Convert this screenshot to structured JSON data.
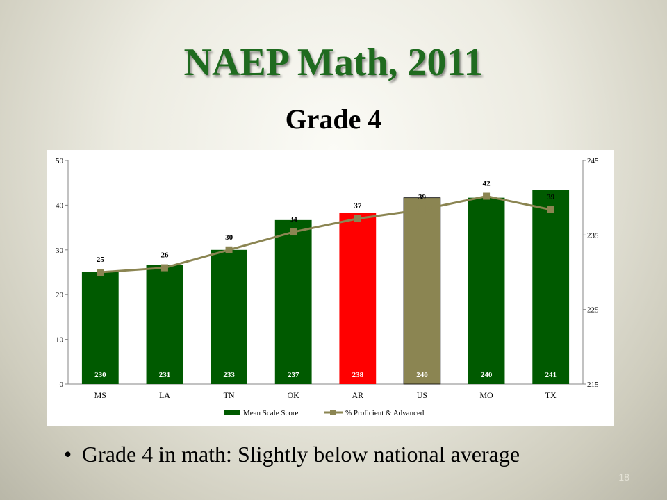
{
  "slide": {
    "title": "NAEP Math, 2011",
    "subtitle": "Grade 4",
    "bullet": "Grade 4 in math: Slightly below national average",
    "page_number": "18"
  },
  "chart_data": {
    "type": "bar",
    "categories": [
      "MS",
      "LA",
      "TN",
      "OK",
      "AR",
      "US",
      "MO",
      "TX"
    ],
    "series": [
      {
        "name": "Mean Scale Score",
        "type": "bar",
        "axis": "right",
        "values": [
          230,
          231,
          233,
          237,
          238,
          240,
          240,
          241
        ],
        "colors": [
          "#005a00",
          "#005a00",
          "#005a00",
          "#005a00",
          "#ff0000",
          "#8b8552",
          "#005a00",
          "#005a00"
        ]
      },
      {
        "name": "% Proficient & Advanced",
        "type": "line",
        "axis": "left",
        "values": [
          25,
          26,
          30,
          34,
          37,
          39,
          42,
          39
        ],
        "color": "#8b8552"
      }
    ],
    "left_axis": {
      "range": [
        0,
        50
      ],
      "ticks": [
        "0",
        "10",
        "20",
        "30",
        "40",
        "50"
      ]
    },
    "right_axis": {
      "range": [
        215,
        245
      ],
      "ticks": [
        "215",
        "225",
        "235",
        "245"
      ]
    },
    "legend": "bottom",
    "grid": false
  },
  "colors": {
    "title": "#1f6b1f",
    "bar_default": "#005a00",
    "bar_highlight": "#ff0000",
    "bar_national": "#8b8552",
    "line": "#8b8552"
  }
}
